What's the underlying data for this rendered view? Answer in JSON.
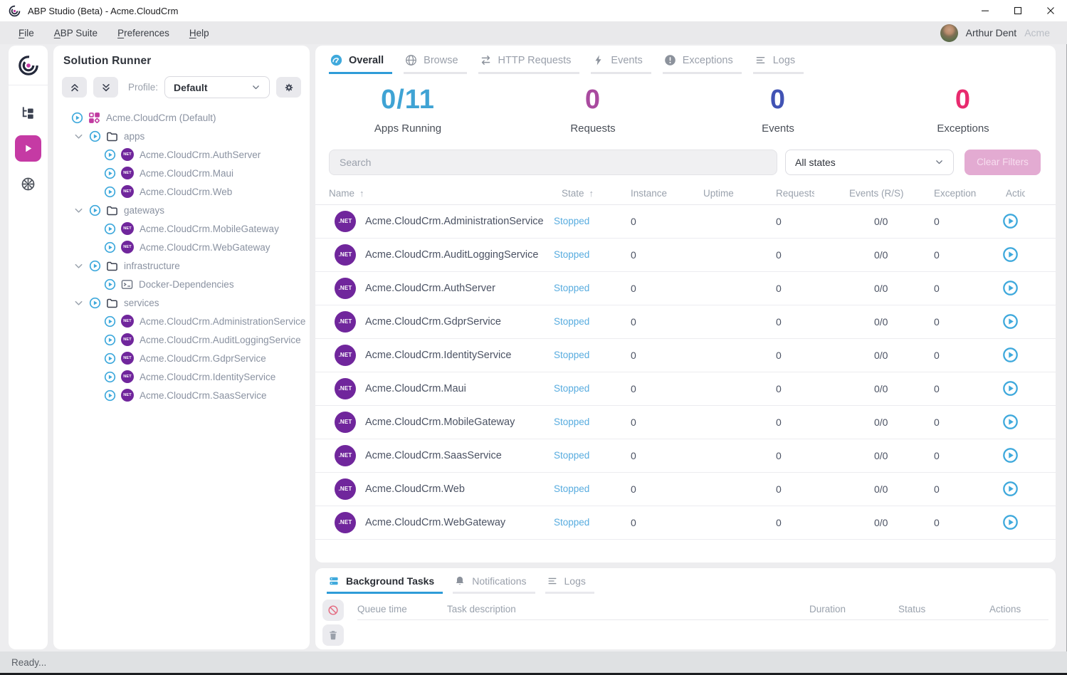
{
  "window": {
    "title": "ABP Studio (Beta) - Acme.CloudCrm",
    "controls": [
      "minimize",
      "maximize",
      "close"
    ]
  },
  "menu": {
    "items": [
      "File",
      "ABP Suite",
      "Preferences",
      "Help"
    ]
  },
  "user": {
    "name": "Arthur Dent",
    "tenant": "Acme"
  },
  "rail": {
    "items": [
      {
        "name": "solution-explorer",
        "icon": "hierarchy-icon",
        "active": false
      },
      {
        "name": "solution-runner",
        "icon": "play-icon",
        "active": true
      },
      {
        "name": "kubernetes",
        "icon": "kubernetes-icon",
        "active": false
      }
    ]
  },
  "solution_runner": {
    "title": "Solution Runner",
    "profile_label": "Profile:",
    "profile_value": "Default",
    "tree": [
      {
        "label": "Acme.CloudCrm (Default)",
        "icon": "solution-grid-icon",
        "level": 0,
        "chevron": false
      },
      {
        "label": "apps",
        "icon": "folder-icon",
        "level": 1,
        "chevron": true
      },
      {
        "label": "Acme.CloudCrm.AuthServer",
        "icon": "dotnet-badge-icon",
        "level": 2,
        "chevron": false
      },
      {
        "label": "Acme.CloudCrm.Maui",
        "icon": "dotnet-badge-icon",
        "level": 2,
        "chevron": false
      },
      {
        "label": "Acme.CloudCrm.Web",
        "icon": "dotnet-badge-icon",
        "level": 2,
        "chevron": false
      },
      {
        "label": "gateways",
        "icon": "folder-icon",
        "level": 1,
        "chevron": true
      },
      {
        "label": "Acme.CloudCrm.MobileGateway",
        "icon": "dotnet-badge-icon",
        "level": 2,
        "chevron": false
      },
      {
        "label": "Acme.CloudCrm.WebGateway",
        "icon": "dotnet-badge-icon",
        "level": 2,
        "chevron": false
      },
      {
        "label": "infrastructure",
        "icon": "folder-icon",
        "level": 1,
        "chevron": true
      },
      {
        "label": "Docker-Dependencies",
        "icon": "terminal-icon",
        "level": 2,
        "chevron": false
      },
      {
        "label": "services",
        "icon": "folder-icon",
        "level": 1,
        "chevron": true
      },
      {
        "label": "Acme.CloudCrm.AdministrationService",
        "icon": "dotnet-badge-icon",
        "level": 2,
        "chevron": false
      },
      {
        "label": "Acme.CloudCrm.AuditLoggingService",
        "icon": "dotnet-badge-icon",
        "level": 2,
        "chevron": false
      },
      {
        "label": "Acme.CloudCrm.GdprService",
        "icon": "dotnet-badge-icon",
        "level": 2,
        "chevron": false
      },
      {
        "label": "Acme.CloudCrm.IdentityService",
        "icon": "dotnet-badge-icon",
        "level": 2,
        "chevron": false
      },
      {
        "label": "Acme.CloudCrm.SaasService",
        "icon": "dotnet-badge-icon",
        "level": 2,
        "chevron": false
      }
    ]
  },
  "main": {
    "tabs": [
      {
        "label": "Overall",
        "icon": "gauge-icon",
        "active": true
      },
      {
        "label": "Browse",
        "icon": "globe-icon",
        "active": false
      },
      {
        "label": "HTTP Requests",
        "icon": "arrows-swap-icon",
        "active": false
      },
      {
        "label": "Events",
        "icon": "lightning-icon",
        "active": false
      },
      {
        "label": "Exceptions",
        "icon": "exclamation-icon",
        "active": false
      },
      {
        "label": "Logs",
        "icon": "lines-icon",
        "active": false
      }
    ],
    "stats": [
      {
        "value": "0/11",
        "label": "Apps Running",
        "color": "#3fa3d4"
      },
      {
        "value": "0",
        "label": "Requests",
        "color": "#a94a9f"
      },
      {
        "value": "0",
        "label": "Events",
        "color": "#4153b4"
      },
      {
        "value": "0",
        "label": "Exceptions",
        "color": "#e82a6e"
      }
    ],
    "search_placeholder": "Search",
    "state_filter_value": "All states",
    "clear_filters_label": "Clear Filters",
    "table": {
      "columns": [
        {
          "label": "Name",
          "sort": "asc"
        },
        {
          "label": "State",
          "sort": "asc"
        },
        {
          "label": "Instance"
        },
        {
          "label": "Uptime"
        },
        {
          "label": "Requests"
        },
        {
          "label": "Events (R/S)"
        },
        {
          "label": "Exceptions"
        },
        {
          "label": "Actions"
        }
      ],
      "rows": [
        {
          "name": "Acme.CloudCrm.AdministrationService",
          "state": "Stopped",
          "instance": "0",
          "uptime": "",
          "requests": "0",
          "events": "0/0",
          "exceptions": "0"
        },
        {
          "name": "Acme.CloudCrm.AuditLoggingService",
          "state": "Stopped",
          "instance": "0",
          "uptime": "",
          "requests": "0",
          "events": "0/0",
          "exceptions": "0"
        },
        {
          "name": "Acme.CloudCrm.AuthServer",
          "state": "Stopped",
          "instance": "0",
          "uptime": "",
          "requests": "0",
          "events": "0/0",
          "exceptions": "0"
        },
        {
          "name": "Acme.CloudCrm.GdprService",
          "state": "Stopped",
          "instance": "0",
          "uptime": "",
          "requests": "0",
          "events": "0/0",
          "exceptions": "0"
        },
        {
          "name": "Acme.CloudCrm.IdentityService",
          "state": "Stopped",
          "instance": "0",
          "uptime": "",
          "requests": "0",
          "events": "0/0",
          "exceptions": "0"
        },
        {
          "name": "Acme.CloudCrm.Maui",
          "state": "Stopped",
          "instance": "0",
          "uptime": "",
          "requests": "0",
          "events": "0/0",
          "exceptions": "0"
        },
        {
          "name": "Acme.CloudCrm.MobileGateway",
          "state": "Stopped",
          "instance": "0",
          "uptime": "",
          "requests": "0",
          "events": "0/0",
          "exceptions": "0"
        },
        {
          "name": "Acme.CloudCrm.SaasService",
          "state": "Stopped",
          "instance": "0",
          "uptime": "",
          "requests": "0",
          "events": "0/0",
          "exceptions": "0"
        },
        {
          "name": "Acme.CloudCrm.Web",
          "state": "Stopped",
          "instance": "0",
          "uptime": "",
          "requests": "0",
          "events": "0/0",
          "exceptions": "0"
        },
        {
          "name": "Acme.CloudCrm.WebGateway",
          "state": "Stopped",
          "instance": "0",
          "uptime": "",
          "requests": "0",
          "events": "0/0",
          "exceptions": "0"
        }
      ],
      "state_color": "#58acdf",
      "badge_label": ".NET"
    }
  },
  "bottom_panel": {
    "tabs": [
      {
        "label": "Background Tasks",
        "icon": "stack-icon",
        "active": true
      },
      {
        "label": "Notifications",
        "icon": "bell-icon",
        "active": false
      },
      {
        "label": "Logs",
        "icon": "lines-icon",
        "active": false
      }
    ],
    "columns": [
      "Queue time",
      "Task description",
      "Duration",
      "Status",
      "Actions"
    ]
  },
  "status": {
    "text": "Ready..."
  },
  "colors": {
    "accent_magenta": "#c53aa4",
    "accent_blue": "#3fa9dc",
    "badge_purple": "#70269c"
  }
}
